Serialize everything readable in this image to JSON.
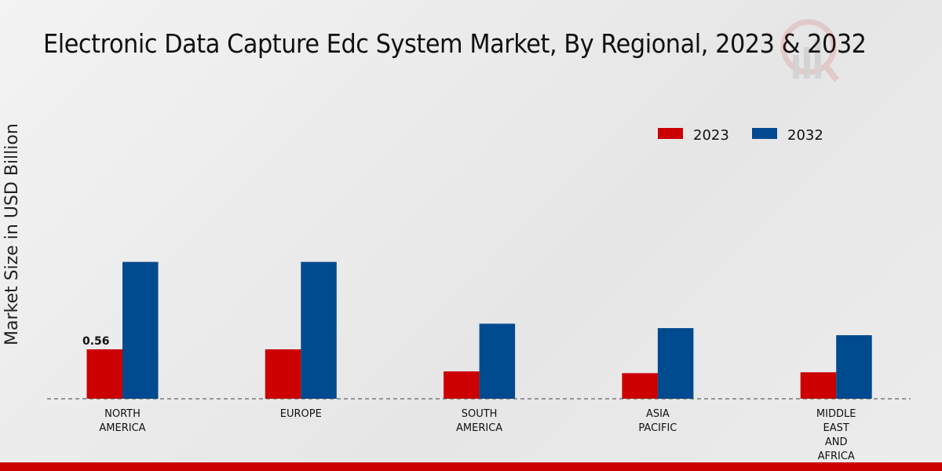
{
  "chart_data": {
    "type": "bar",
    "title": "Electronic Data Capture Edc System Market, By Regional, 2023 & 2032",
    "xlabel": "",
    "ylabel": "Market Size in USD Billion",
    "categories": [
      [
        "NORTH",
        "AMERICA"
      ],
      [
        "EUROPE"
      ],
      [
        "SOUTH",
        "AMERICA"
      ],
      [
        "ASIA",
        "PACIFIC"
      ],
      [
        "MIDDLE",
        "EAST",
        "AND",
        "AFRICA"
      ]
    ],
    "series": [
      {
        "name": "2023",
        "color": "#cc0000",
        "values": [
          0.56,
          0.56,
          0.31,
          0.29,
          0.3
        ]
      },
      {
        "name": "2032",
        "color": "#004a8f",
        "values": [
          1.55,
          1.55,
          0.85,
          0.8,
          0.72
        ]
      }
    ],
    "data_labels": [
      {
        "series": 0,
        "index": 0,
        "text": "0.56"
      }
    ],
    "ylim": [
      0,
      3.5
    ],
    "grid": false,
    "legend_position": "top-right"
  }
}
